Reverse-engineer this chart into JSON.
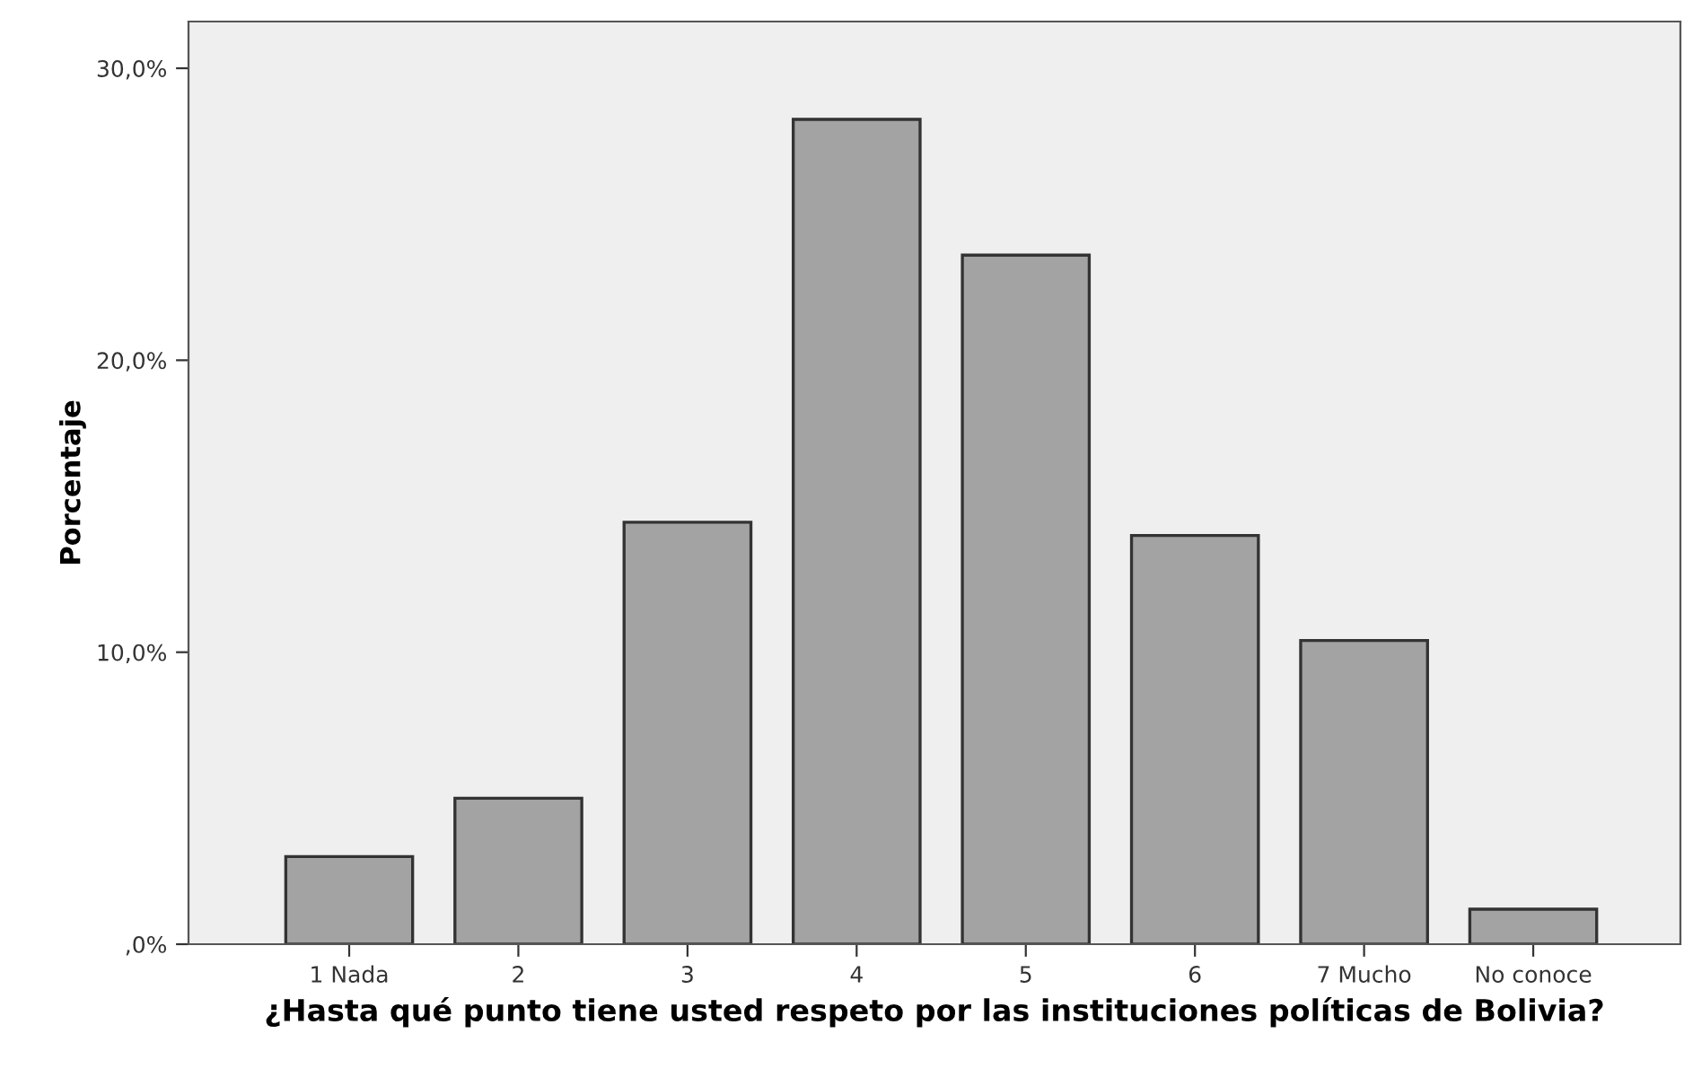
{
  "chart_data": {
    "type": "bar",
    "xlabel": "¿Hasta qué punto tiene usted respeto por las instituciones políticas de Bolivia?",
    "ylabel": "Porcentaje",
    "categories": [
      "1 Nada",
      "2",
      "3",
      "4",
      "5",
      "6",
      "7 Mucho",
      "No conoce"
    ],
    "values": [
      3.0,
      5.0,
      14.45,
      28.25,
      23.6,
      14.0,
      10.4,
      1.2
    ],
    "color": "#a3a3a3",
    "ylim": [
      0,
      31.6
    ],
    "yticks": [
      {
        "value": 0,
        "label": ",0%"
      },
      {
        "value": 10,
        "label": "10,0%"
      },
      {
        "value": 20,
        "label": "20,0%"
      },
      {
        "value": 30,
        "label": "30,0%"
      }
    ],
    "grid": false,
    "legend": false
  }
}
